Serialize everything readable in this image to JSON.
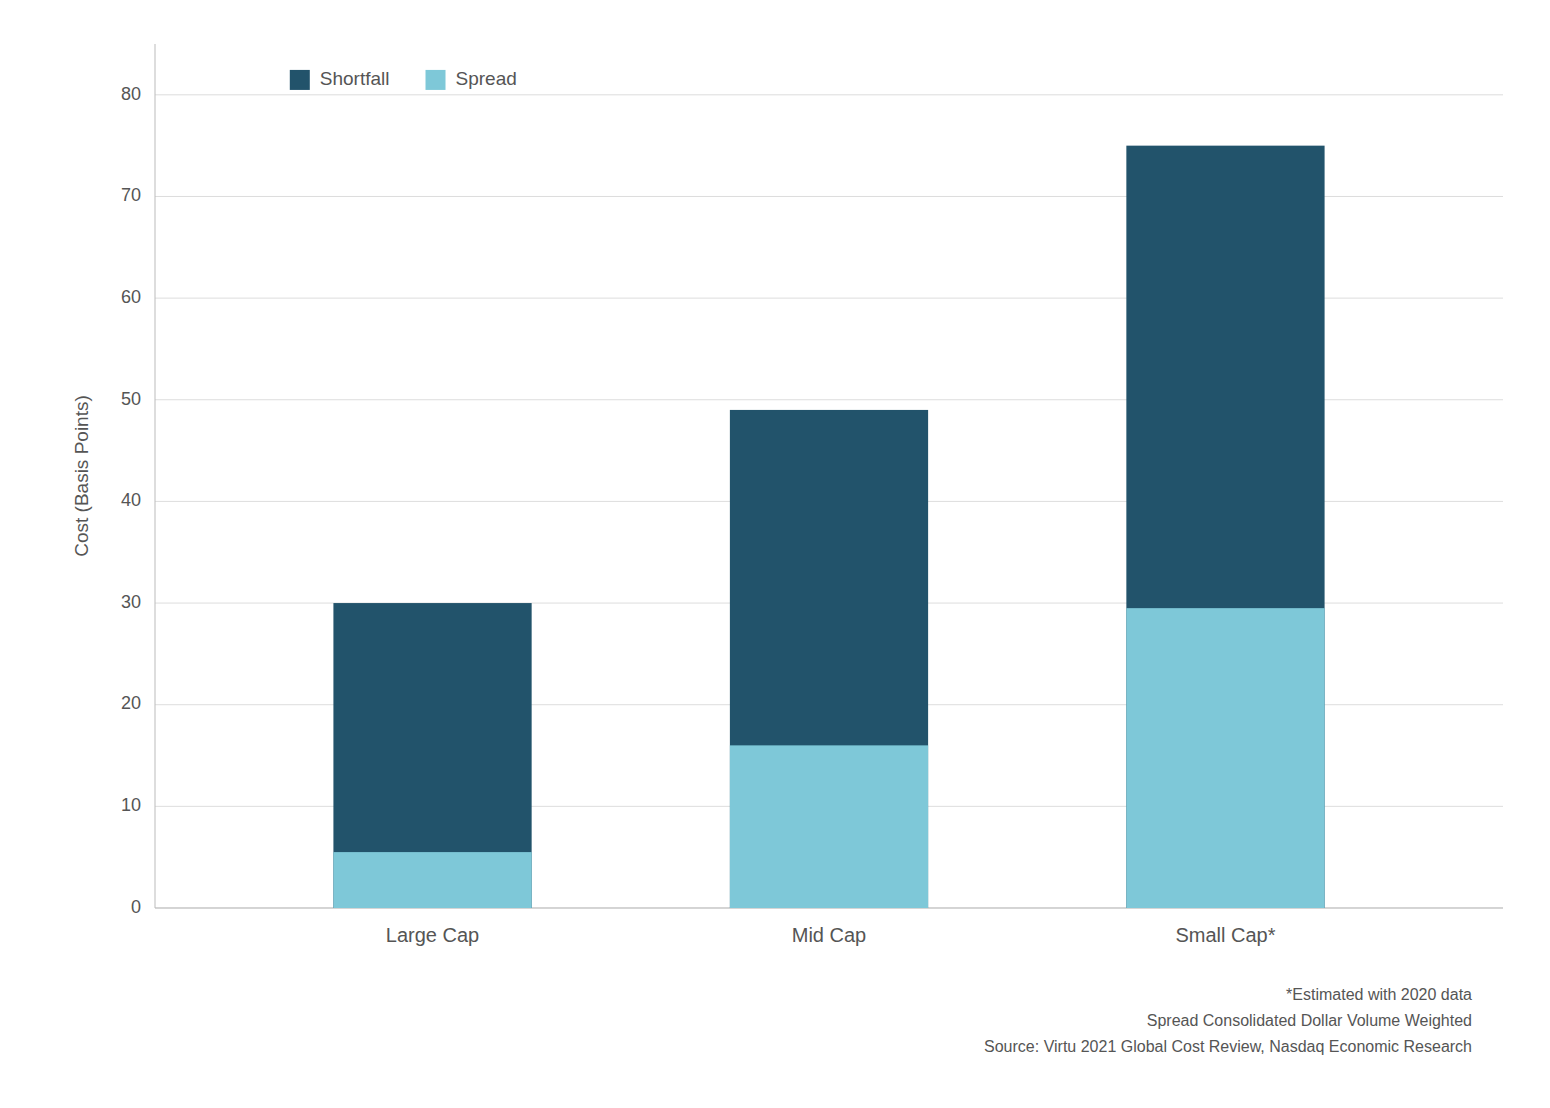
{
  "chart_data": {
    "type": "bar",
    "categories": [
      "Large Cap",
      "Mid Cap",
      "Small Cap*"
    ],
    "series": [
      {
        "name": "Shortfall",
        "color": "#22536b",
        "values": [
          30,
          49,
          75
        ]
      },
      {
        "name": "Spread",
        "color": "#7ec8d8",
        "values": [
          5.5,
          16,
          29.5
        ]
      }
    ],
    "stacked": false,
    "ylabel": "Cost (Basis Points)",
    "ylim": [
      0,
      85
    ],
    "yticks": [
      0,
      10,
      20,
      30,
      40,
      50,
      60,
      70,
      80
    ],
    "grid": true,
    "legend": "upper left",
    "annotations": [
      "*Estimated with 2020 data",
      "Spread Consolidated Dollar Volume Weighted",
      "Source: Virtu 2021 Global Cost Review, Nasdaq Economic Research"
    ]
  }
}
